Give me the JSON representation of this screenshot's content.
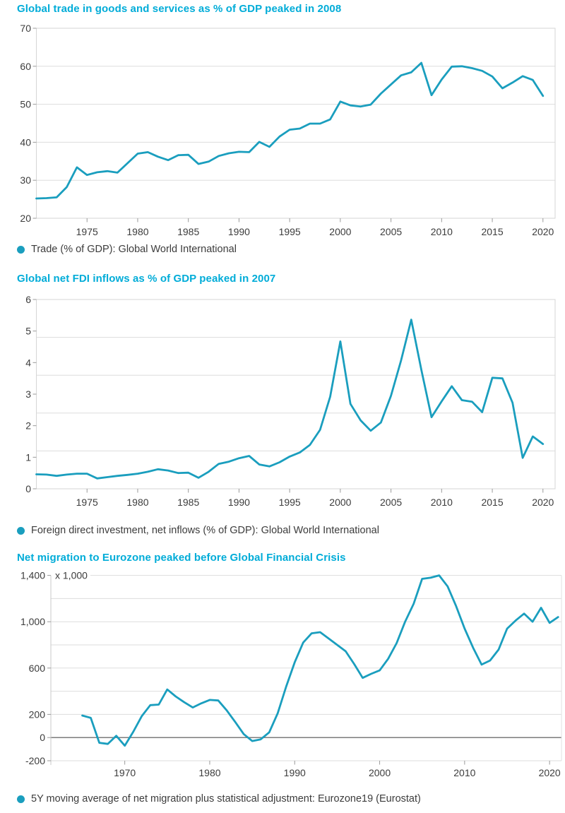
{
  "accent_color": "#00ACD8",
  "line_color": "#1A9EBE",
  "grid_color": "#DDDDDD",
  "zero_line_color": "#6F6F6F",
  "text_color": "#3C3C3C",
  "chart_data": [
    {
      "type": "line",
      "title": "Global trade in goods and services as % of GDP peaked in 2008",
      "legend": "Trade (% of GDP): Global World International",
      "color": "#1A9EBE",
      "x_first": 1970,
      "values": [
        25.2,
        25.3,
        25.5,
        28.2,
        33.4,
        31.4,
        32.1,
        32.4,
        32.0,
        34.5,
        37.0,
        37.4,
        36.2,
        35.3,
        36.6,
        36.7,
        34.3,
        34.9,
        36.4,
        37.1,
        37.5,
        37.4,
        40.1,
        38.8,
        41.5,
        43.3,
        43.6,
        44.9,
        44.9,
        46.0,
        50.7,
        49.7,
        49.4,
        49.9,
        52.8,
        55.2,
        57.6,
        58.4,
        60.9,
        52.4,
        56.5,
        59.9,
        60.0,
        59.5,
        58.8,
        57.3,
        54.2,
        55.7,
        57.4,
        56.4,
        52.2
      ],
      "xlim": [
        1970,
        2021.2
      ],
      "ylim": [
        20,
        70
      ],
      "x_ticks": [
        1975,
        1980,
        1985,
        1990,
        1995,
        2000,
        2005,
        2010,
        2015,
        2020
      ],
      "y_ticks": [
        {
          "label": "70",
          "value": 70
        },
        {
          "label": "60",
          "value": 60
        },
        {
          "label": "50",
          "value": 50
        },
        {
          "label": "40",
          "value": 40
        },
        {
          "label": "30",
          "value": 30
        },
        {
          "label": "20",
          "value": 20
        }
      ],
      "grid_values": [
        20,
        30,
        40,
        50,
        60,
        70
      ],
      "grid": true,
      "legend_position": "bottom-left"
    },
    {
      "type": "line",
      "title": "Global net FDI inflows as % of GDP peaked in 2007",
      "legend": "Foreign direct investment, net inflows (% of GDP): Global World International",
      "color": "#1A9EBE",
      "x_first": 1970,
      "values": [
        0.46,
        0.45,
        0.41,
        0.45,
        0.48,
        0.48,
        0.33,
        0.37,
        0.41,
        0.44,
        0.48,
        0.54,
        0.62,
        0.58,
        0.5,
        0.51,
        0.35,
        0.54,
        0.79,
        0.86,
        0.97,
        1.04,
        0.77,
        0.71,
        0.84,
        1.02,
        1.15,
        1.39,
        1.87,
        2.92,
        4.67,
        2.69,
        2.17,
        1.84,
        2.1,
        2.95,
        4.07,
        5.36,
        3.77,
        2.27,
        2.77,
        3.25,
        2.81,
        2.76,
        2.43,
        3.52,
        3.5,
        2.73,
        0.98,
        1.66,
        1.42
      ],
      "xlim": [
        1970,
        2021.2
      ],
      "ylim": [
        0,
        6
      ],
      "x_ticks": [
        1975,
        1980,
        1985,
        1990,
        1995,
        2000,
        2005,
        2010,
        2015,
        2020
      ],
      "y_ticks": [
        {
          "label": "6",
          "value": 6
        },
        {
          "label": "5",
          "value": 5
        },
        {
          "label": "4",
          "value": 4
        },
        {
          "label": "3",
          "value": 3
        },
        {
          "label": "2",
          "value": 2
        },
        {
          "label": "1",
          "value": 1
        },
        {
          "label": "0",
          "value": 0
        }
      ],
      "grid_values": [
        0,
        1.2,
        2.4,
        3.6,
        4.8,
        6
      ],
      "grid": true,
      "legend_position": "bottom-left"
    },
    {
      "type": "line",
      "title": "Net migration to Eurozone peaked before Global Financial Crisis",
      "legend": "5Y moving average of net migration plus statistical adjustment: Eurozone19 (Eurostat)",
      "unit_note": "x 1,000",
      "color": "#1A9EBE",
      "x_first": 1965,
      "values": [
        190,
        170,
        -45,
        -55,
        15,
        -70,
        50,
        185,
        280,
        285,
        415,
        355,
        305,
        260,
        295,
        325,
        320,
        235,
        135,
        30,
        -30,
        -15,
        45,
        210,
        440,
        650,
        820,
        900,
        910,
        855,
        800,
        745,
        635,
        515,
        550,
        580,
        680,
        815,
        1000,
        1155,
        1370,
        1380,
        1400,
        1305,
        1135,
        940,
        775,
        630,
        665,
        760,
        940,
        1010,
        1070,
        1000,
        1120,
        990,
        1040
      ],
      "xlim": [
        1961.3,
        2021.4
      ],
      "ylim": [
        -200,
        1400
      ],
      "x_ticks": [
        1970,
        1980,
        1990,
        2000,
        2010,
        2020
      ],
      "y_ticks": [
        {
          "label": "1,400",
          "value": 1400
        },
        {
          "label": "1,000",
          "value": 1000
        },
        {
          "label": "600",
          "value": 600
        },
        {
          "label": "200",
          "value": 200
        },
        {
          "label": "0",
          "value": 0
        },
        {
          "label": "-200",
          "value": -200
        }
      ],
      "grid_values": [
        -200,
        0,
        200,
        400,
        600,
        800,
        1000,
        1200,
        1400
      ],
      "zero_line_emphasized": true,
      "grid": true,
      "legend_position": "bottom-left"
    }
  ]
}
